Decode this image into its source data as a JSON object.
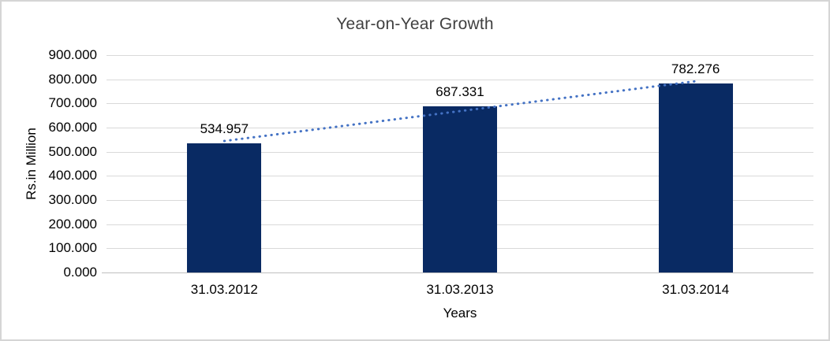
{
  "chart_data": {
    "type": "bar",
    "title": "Year-on-Year Growth",
    "categories": [
      "31.03.2012",
      "31.03.2013",
      "31.03.2014"
    ],
    "values": [
      534.957,
      687.331,
      782.276
    ],
    "data_labels": [
      "534.957",
      "687.331",
      "782.276"
    ],
    "xlabel": "Years",
    "ylabel": "Rs.in Million",
    "ylim": [
      0,
      900
    ],
    "ytick_step": 100,
    "ytick_labels": [
      "0.000",
      "100.000",
      "200.000",
      "300.000",
      "400.000",
      "500.000",
      "600.000",
      "700.000",
      "800.000",
      "900.000"
    ],
    "grid": true,
    "legend": "none",
    "colors": {
      "bar": "#092A63",
      "trendline": "#4472C4",
      "gridline": "#D9D9D9",
      "axis_line": "#BFBFBF",
      "title_text": "#404040",
      "label_text": "#000000",
      "chart_border": "#D5D5D5"
    },
    "trendline": {
      "type": "linear",
      "style": "dotted",
      "color": "#4472C4"
    }
  }
}
